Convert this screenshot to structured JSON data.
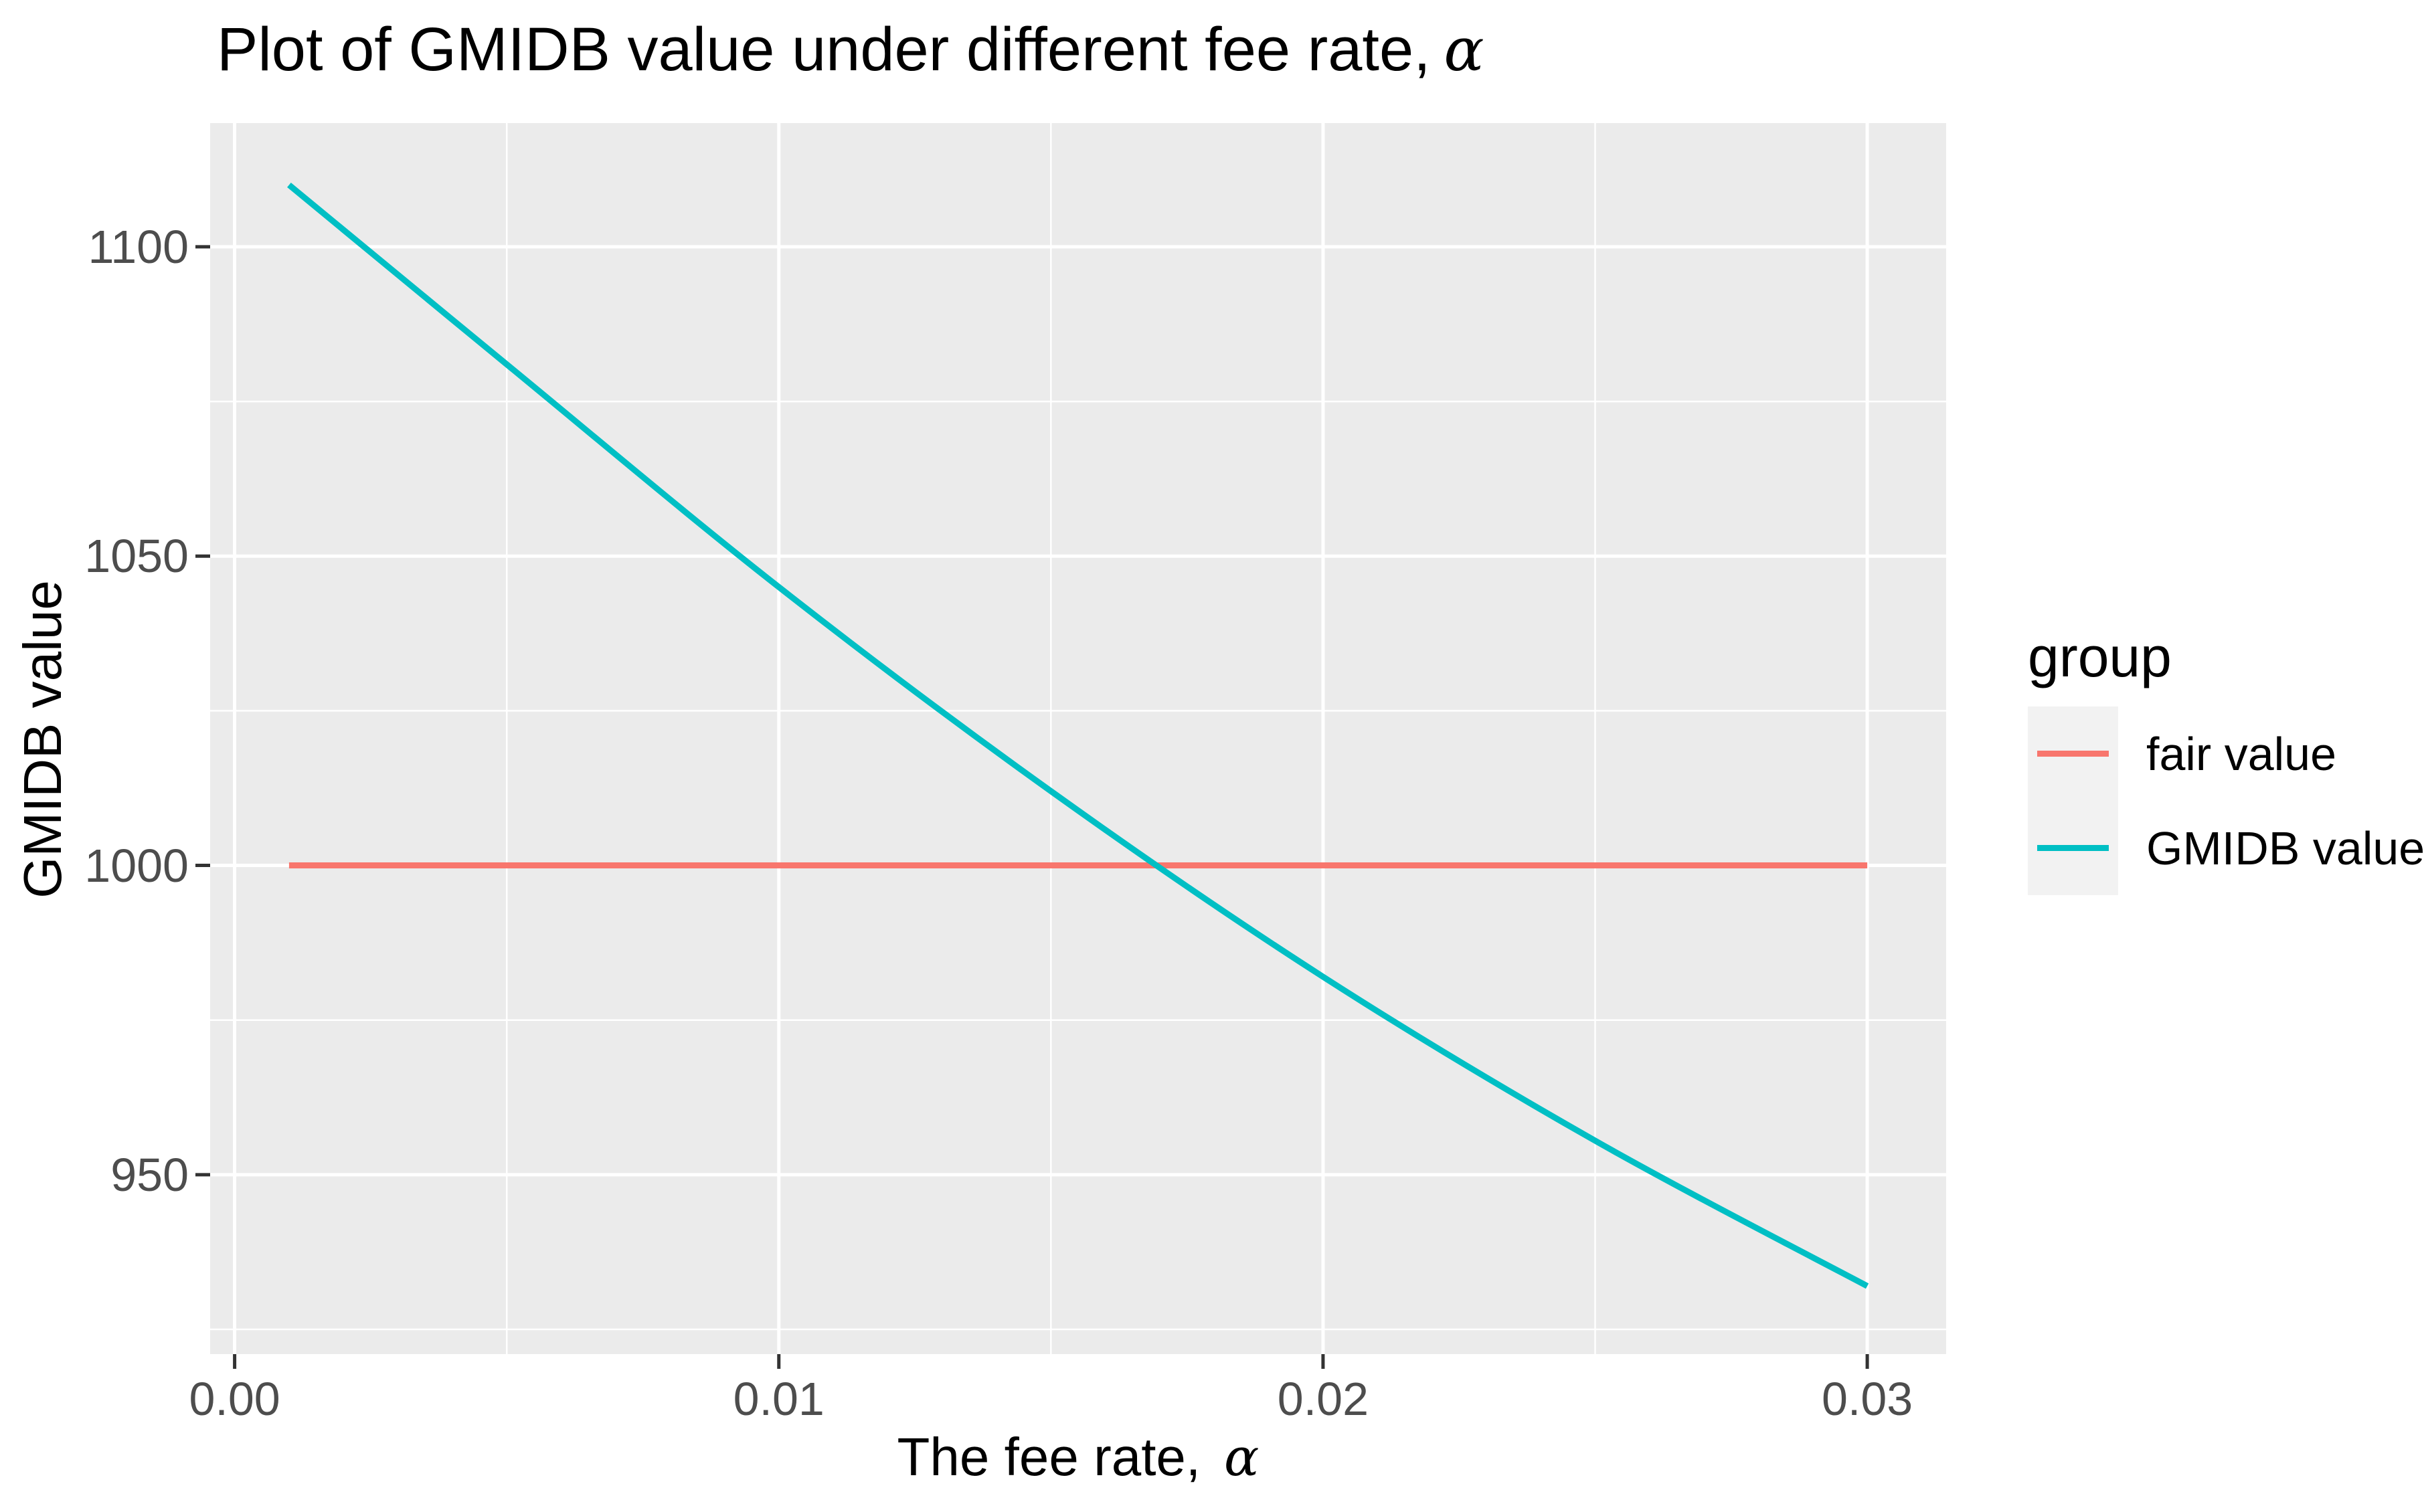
{
  "chart_data": {
    "type": "line",
    "title": {
      "text": "Plot of GMIDB value under different fee rate, α",
      "prefix": "Plot of GMIDB value under different fee rate,",
      "alpha": "α"
    },
    "xlabel": {
      "text": "The fee rate, α",
      "prefix": "The fee rate,",
      "alpha": "α"
    },
    "ylabel": "GMIDB value",
    "x_axis": {
      "range": [
        -0.00045,
        0.03145
      ],
      "tick_values": [
        0,
        0.01,
        0.02,
        0.03
      ],
      "tick_labels": [
        "0.00",
        "0.01",
        "0.02",
        "0.03"
      ],
      "minor_tick_values": [
        0.005,
        0.015,
        0.025
      ]
    },
    "y_axis": {
      "range": [
        921,
        1120
      ],
      "tick_values": [
        950,
        1000,
        1050,
        1100
      ],
      "tick_labels": [
        "950",
        "1000",
        "1050",
        "1100"
      ],
      "minor_tick_values": [
        925,
        975,
        1025,
        1075
      ]
    },
    "grid": "on",
    "legend": {
      "title": "group",
      "position": "right",
      "entries": [
        {
          "label": "fair value",
          "color": "#F8766D"
        },
        {
          "label": "GMIDB value",
          "color": "#00BFC4"
        }
      ]
    },
    "series": [
      {
        "name": "fair value",
        "color": "#F8766D",
        "line": "straight",
        "x": [
          0.001,
          0.03
        ],
        "y": [
          1000,
          1000
        ]
      },
      {
        "name": "GMIDB value",
        "color": "#00BFC4",
        "line": "smooth",
        "x": [
          0.001,
          0.005,
          0.01,
          0.015,
          0.02,
          0.025,
          0.03
        ],
        "y": [
          1110,
          1081,
          1045,
          1012,
          982,
          955.5,
          932
        ]
      }
    ],
    "style": {
      "panel_bg": "#EBEBEB",
      "grid_color": "#FFFFFF",
      "tick_color": "#333333",
      "tick_label_color": "#4D4D4D",
      "text_color": "#000000",
      "legend_key_bg": "#F2F2F2",
      "background": "#FFFFFF"
    }
  }
}
